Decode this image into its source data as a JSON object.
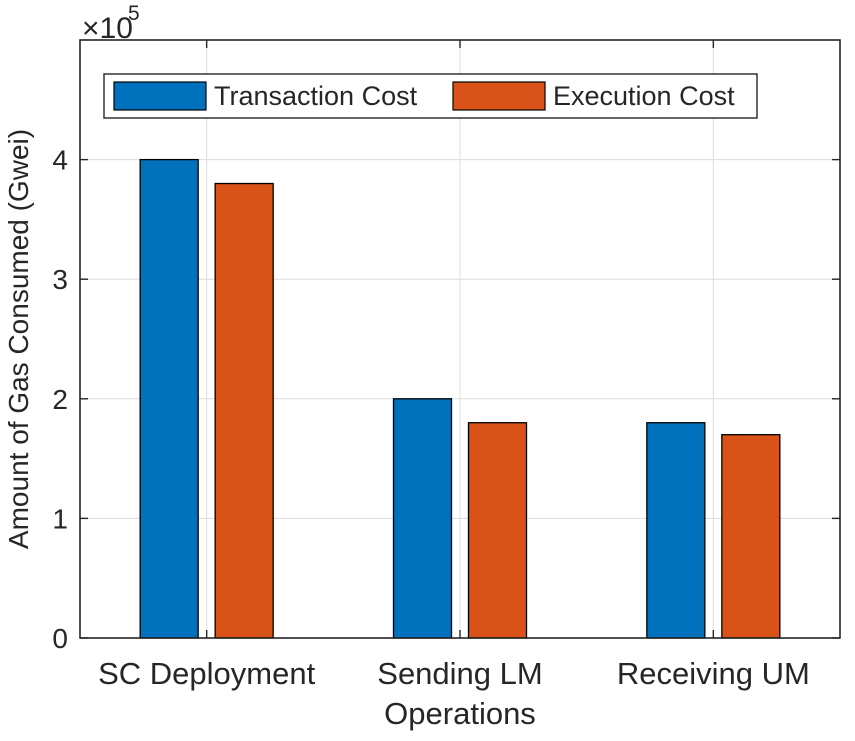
{
  "chart_data": {
    "type": "bar",
    "title": "",
    "xlabel": "",
    "ylabel": "Amount of Gas Consumed (Gwei)",
    "ylim": [
      0,
      5
    ],
    "y_scale_factor": "×10",
    "y_scale_exponent": "5",
    "yticks": [
      0,
      1,
      2,
      3,
      4
    ],
    "grid": true,
    "legend_position": "top-left",
    "categories": [
      "SC Deployment",
      "Sending LM Operations",
      "Receiving UM"
    ],
    "category_lines": [
      [
        "SC Deployment"
      ],
      [
        "Sending LM",
        "Operations"
      ],
      [
        "Receiving UM"
      ]
    ],
    "series": [
      {
        "name": "Transaction Cost",
        "color": "#0072BD",
        "values": [
          4.0,
          2.0,
          1.8
        ]
      },
      {
        "name": "Execution Cost",
        "color": "#D95319",
        "values": [
          3.8,
          1.8,
          1.7
        ]
      }
    ]
  }
}
